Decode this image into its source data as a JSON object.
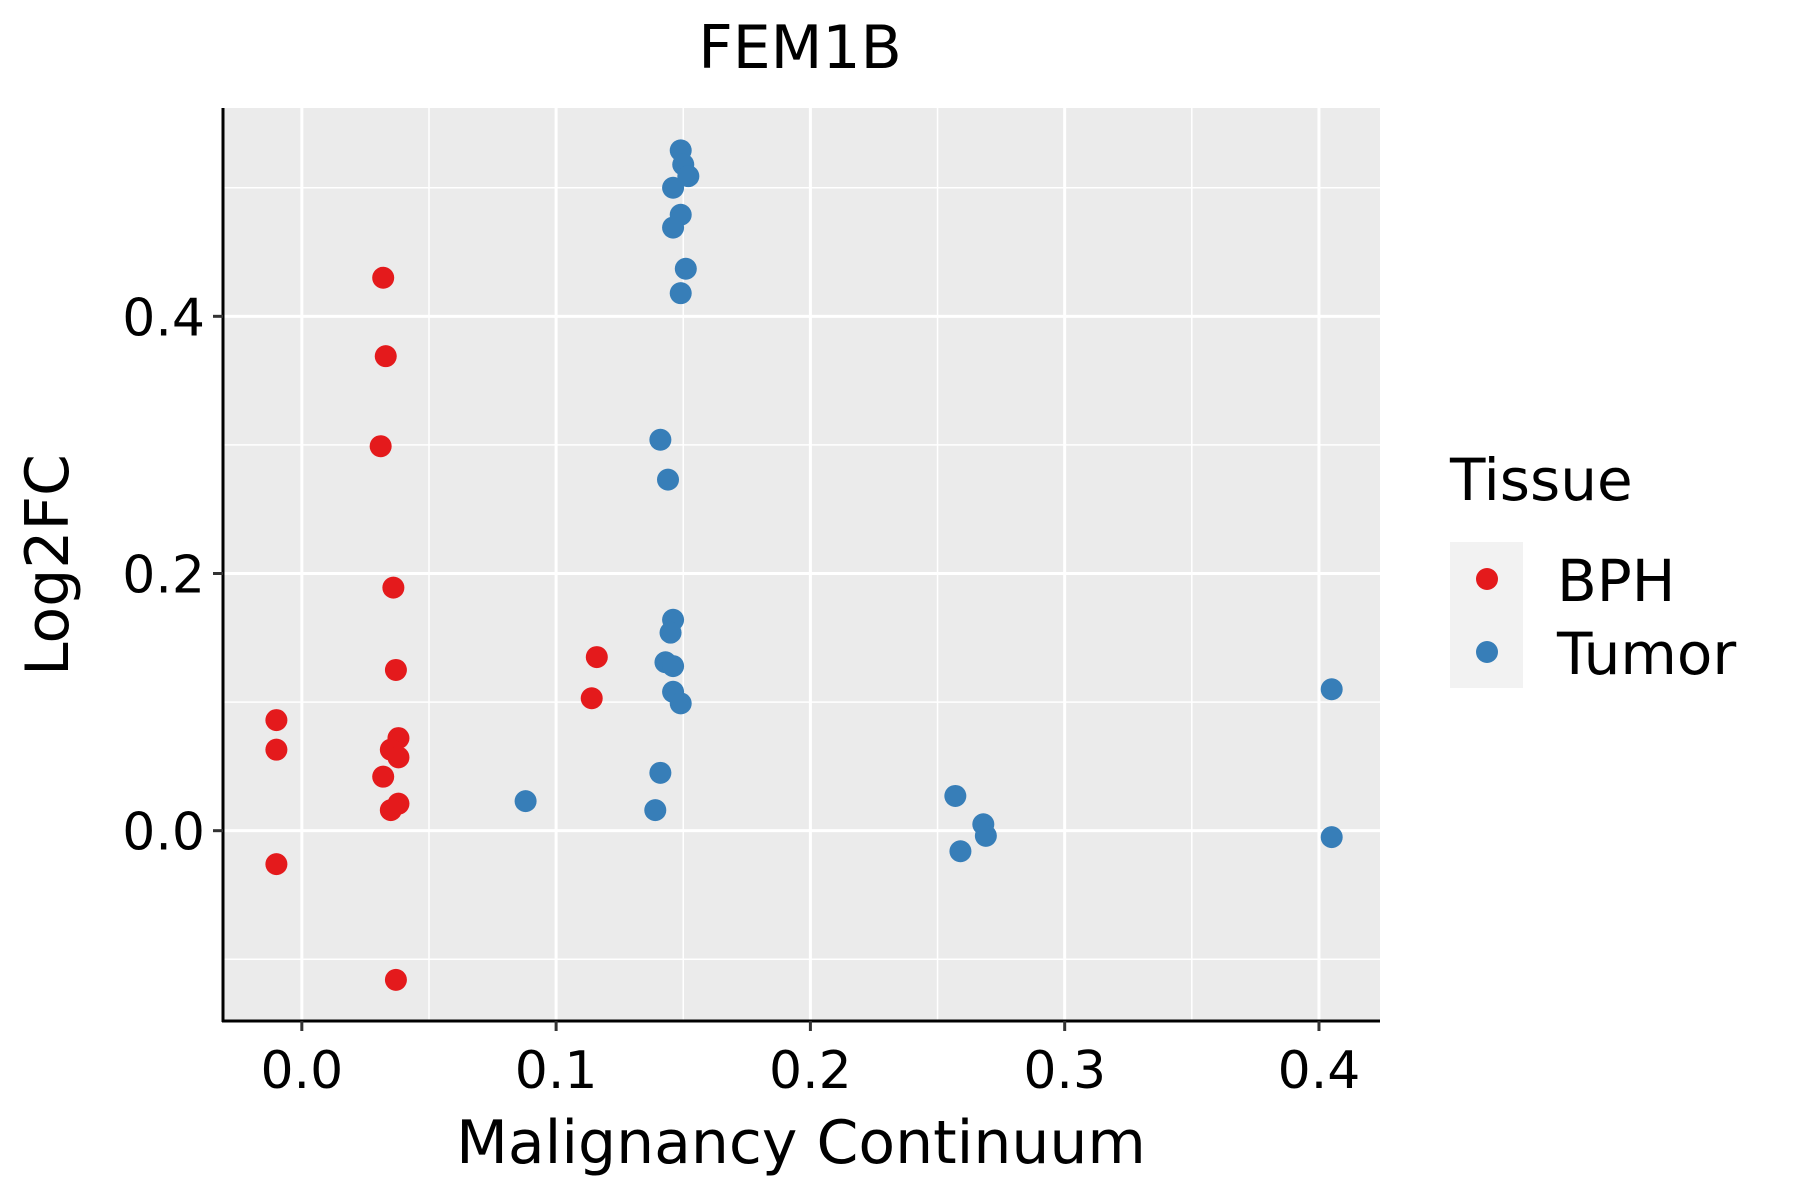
{
  "chart_data": {
    "type": "scatter",
    "title": "FEM1B",
    "xlabel": "Malignancy Continuum",
    "ylabel": "Log2FC",
    "xlim": [
      -0.031,
      0.424
    ],
    "ylim": [
      -0.148,
      0.562
    ],
    "x_ticks": [
      0.0,
      0.1,
      0.2,
      0.3,
      0.4
    ],
    "x_tick_labels": [
      "0.0",
      "0.1",
      "0.2",
      "0.3",
      "0.4"
    ],
    "y_ticks": [
      0.0,
      0.2,
      0.4
    ],
    "y_tick_labels": [
      "0.0",
      "0.2",
      "0.4"
    ],
    "grid": true,
    "legend": {
      "title": "Tissue",
      "position": "right",
      "entries": [
        {
          "label": "BPH",
          "color": "#e41a1c"
        },
        {
          "label": "Tumor",
          "color": "#377eb8"
        }
      ]
    },
    "series": [
      {
        "name": "BPH",
        "color": "#e41a1c",
        "points": [
          {
            "x": -0.01,
            "y": 0.086
          },
          {
            "x": -0.01,
            "y": 0.063
          },
          {
            "x": -0.01,
            "y": -0.026
          },
          {
            "x": 0.032,
            "y": 0.43
          },
          {
            "x": 0.033,
            "y": 0.369
          },
          {
            "x": 0.031,
            "y": 0.299
          },
          {
            "x": 0.036,
            "y": 0.189
          },
          {
            "x": 0.037,
            "y": 0.125
          },
          {
            "x": 0.038,
            "y": 0.072
          },
          {
            "x": 0.035,
            "y": 0.063
          },
          {
            "x": 0.038,
            "y": 0.057
          },
          {
            "x": 0.032,
            "y": 0.042
          },
          {
            "x": 0.038,
            "y": 0.021
          },
          {
            "x": 0.035,
            "y": 0.016
          },
          {
            "x": 0.037,
            "y": -0.116
          },
          {
            "x": 0.116,
            "y": 0.135
          },
          {
            "x": 0.114,
            "y": 0.103
          }
        ]
      },
      {
        "name": "Tumor",
        "color": "#377eb8",
        "points": [
          {
            "x": 0.149,
            "y": 0.529
          },
          {
            "x": 0.15,
            "y": 0.518
          },
          {
            "x": 0.152,
            "y": 0.509
          },
          {
            "x": 0.146,
            "y": 0.5
          },
          {
            "x": 0.149,
            "y": 0.479
          },
          {
            "x": 0.146,
            "y": 0.469
          },
          {
            "x": 0.151,
            "y": 0.437
          },
          {
            "x": 0.149,
            "y": 0.418
          },
          {
            "x": 0.141,
            "y": 0.304
          },
          {
            "x": 0.144,
            "y": 0.273
          },
          {
            "x": 0.146,
            "y": 0.164
          },
          {
            "x": 0.145,
            "y": 0.154
          },
          {
            "x": 0.143,
            "y": 0.131
          },
          {
            "x": 0.146,
            "y": 0.128
          },
          {
            "x": 0.146,
            "y": 0.108
          },
          {
            "x": 0.149,
            "y": 0.099
          },
          {
            "x": 0.141,
            "y": 0.045
          },
          {
            "x": 0.088,
            "y": 0.023
          },
          {
            "x": 0.139,
            "y": 0.016
          },
          {
            "x": 0.257,
            "y": 0.027
          },
          {
            "x": 0.268,
            "y": 0.005
          },
          {
            "x": 0.269,
            "y": -0.004
          },
          {
            "x": 0.259,
            "y": -0.016
          },
          {
            "x": 0.405,
            "y": 0.11
          },
          {
            "x": 0.405,
            "y": -0.005
          }
        ]
      }
    ]
  }
}
